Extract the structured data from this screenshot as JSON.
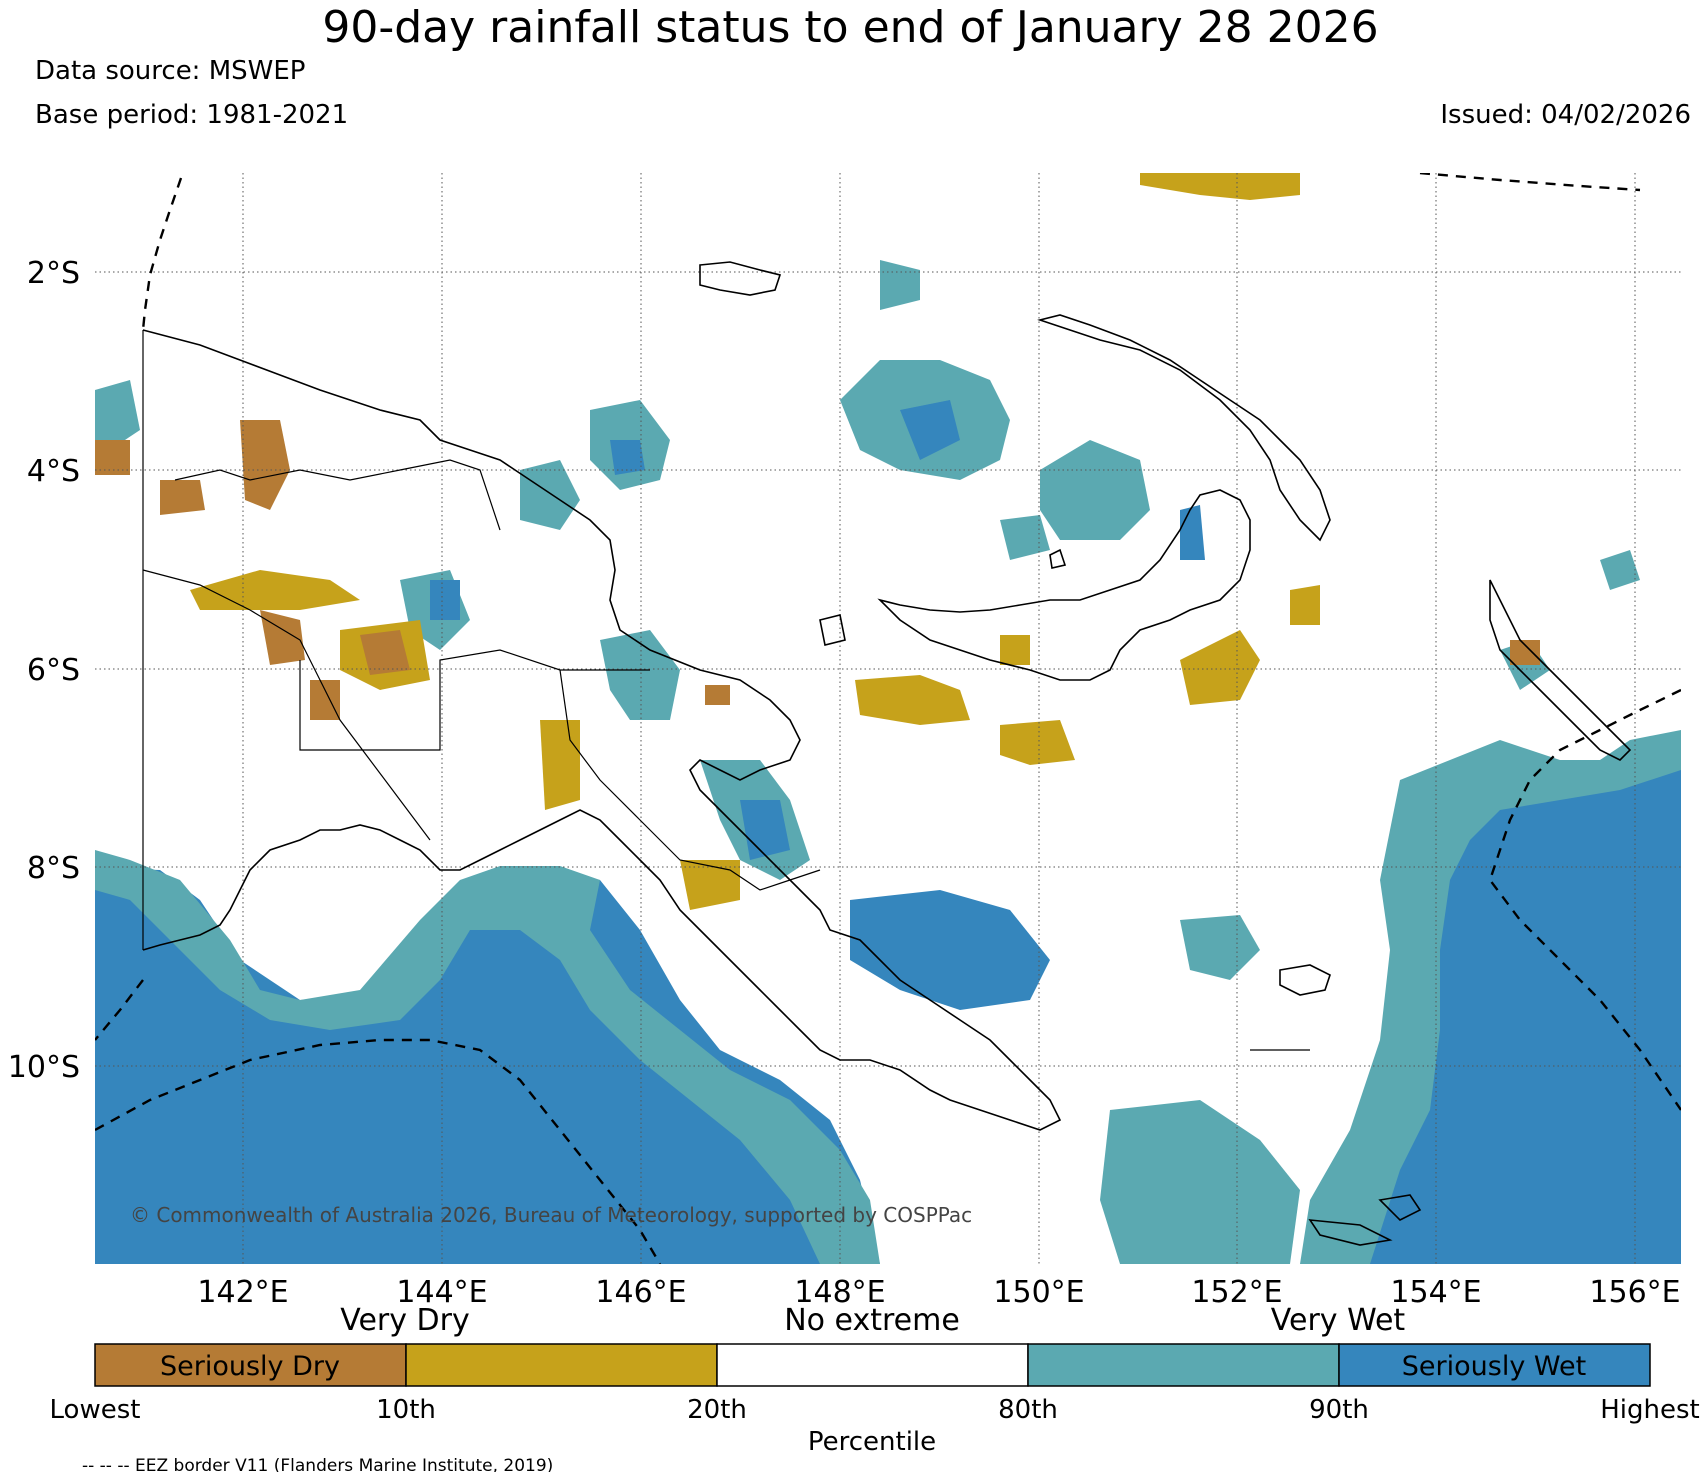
{
  "title": "90-day rainfall status to end of January 28 2026",
  "data_source": "Data source: MSWEP",
  "base_period": "Base period: 1981-2021",
  "issued": "Issued: 04/02/2026",
  "copyright": "© Commonwealth of Australia 2026, Bureau of Meteorology, supported by COSPPac",
  "lat_labels": [
    "2°S",
    "4°S",
    "6°S",
    "8°S",
    "10°S"
  ],
  "lon_labels": [
    "142°E",
    "144°E",
    "146°E",
    "148°E",
    "150°E",
    "152°E",
    "154°E",
    "156°E"
  ],
  "legend": {
    "categories": [
      "Very Dry",
      "No extreme",
      "Very Wet"
    ],
    "boxes": [
      {
        "label": "Seriously Dry",
        "color": "#b57b35"
      },
      {
        "label": "",
        "color": "#c6a21b"
      },
      {
        "label": "",
        "color": "#ffffff"
      },
      {
        "label": "",
        "color": "#5ba9b1"
      },
      {
        "label": "Seriously Wet",
        "color": "#3586bd"
      }
    ],
    "ticks": [
      "Lowest",
      "10th",
      "20th",
      "80th",
      "90th",
      "Highest"
    ],
    "xlabel": "Percentile"
  },
  "footer": "-- -- -- EEZ border V11 (Flanders Marine Institute, 2019)",
  "colors": {
    "seriously_dry": "#b57b35",
    "very_dry": "#c6a21b",
    "very_wet": "#5ba9b1",
    "seriously_wet": "#3586bd"
  }
}
